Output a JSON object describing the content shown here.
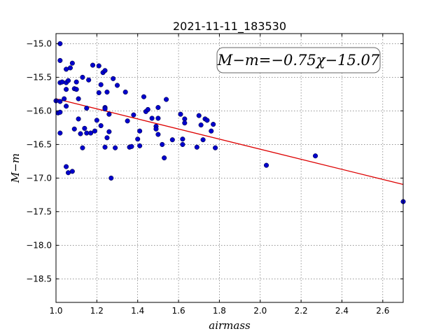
{
  "chart_data": {
    "type": "scatter",
    "title": "2021-11-11_183530",
    "xlabel": "airmass",
    "ylabel": "M−m",
    "fit_label": "M−m=−0.75χ−15.07",
    "xlim": [
      1.0,
      2.7
    ],
    "ylim": [
      -18.85,
      -14.85
    ],
    "y_inverted": false,
    "grid": true,
    "x_ticks": [
      "1.0",
      "1.2",
      "1.4",
      "1.6",
      "1.8",
      "2.0",
      "2.2",
      "2.4",
      "2.6"
    ],
    "y_ticks": [
      "−15.0",
      "−15.5",
      "−16.0",
      "−16.5",
      "−17.0",
      "−17.5",
      "−18.0",
      "−18.5"
    ],
    "fit": {
      "slope": -0.75,
      "intercept": -15.07,
      "x_range": [
        1.0,
        2.7
      ],
      "color": "#dd0000"
    },
    "series": [
      {
        "marker_color": "#0000cc",
        "points": [
          [
            1.0,
            -15.85
          ],
          [
            1.01,
            -16.03
          ],
          [
            1.02,
            -15.0
          ],
          [
            1.02,
            -15.25
          ],
          [
            1.02,
            -15.58
          ],
          [
            1.02,
            -15.86
          ],
          [
            1.02,
            -16.02
          ],
          [
            1.02,
            -16.33
          ],
          [
            1.03,
            -15.57
          ],
          [
            1.04,
            -15.82
          ],
          [
            1.05,
            -15.38
          ],
          [
            1.05,
            -15.58
          ],
          [
            1.05,
            -15.68
          ],
          [
            1.05,
            -15.93
          ],
          [
            1.05,
            -16.83
          ],
          [
            1.06,
            -16.92
          ],
          [
            1.06,
            -15.55
          ],
          [
            1.07,
            -15.36
          ],
          [
            1.08,
            -16.9
          ],
          [
            1.08,
            -15.29
          ],
          [
            1.09,
            -15.67
          ],
          [
            1.09,
            -16.27
          ],
          [
            1.1,
            -15.57
          ],
          [
            1.1,
            -15.68
          ],
          [
            1.11,
            -16.12
          ],
          [
            1.11,
            -15.82
          ],
          [
            1.12,
            -16.34
          ],
          [
            1.13,
            -16.55
          ],
          [
            1.13,
            -15.5
          ],
          [
            1.14,
            -16.26
          ],
          [
            1.15,
            -15.96
          ],
          [
            1.15,
            -16.33
          ],
          [
            1.16,
            -15.54
          ],
          [
            1.17,
            -16.33
          ],
          [
            1.18,
            -15.32
          ],
          [
            1.19,
            -16.3
          ],
          [
            1.2,
            -16.14
          ],
          [
            1.21,
            -15.33
          ],
          [
            1.21,
            -15.73
          ],
          [
            1.22,
            -16.22
          ],
          [
            1.22,
            -15.61
          ],
          [
            1.23,
            -15.43
          ],
          [
            1.24,
            -15.95
          ],
          [
            1.24,
            -15.4
          ],
          [
            1.24,
            -15.97
          ],
          [
            1.24,
            -16.54
          ],
          [
            1.25,
            -15.72
          ],
          [
            1.25,
            -16.4
          ],
          [
            1.26,
            -16.05
          ],
          [
            1.26,
            -16.31
          ],
          [
            1.27,
            -17.0
          ],
          [
            1.28,
            -15.52
          ],
          [
            1.29,
            -16.55
          ],
          [
            1.3,
            -15.62
          ],
          [
            1.34,
            -15.72
          ],
          [
            1.35,
            -16.15
          ],
          [
            1.36,
            -16.54
          ],
          [
            1.37,
            -16.53
          ],
          [
            1.38,
            -16.06
          ],
          [
            1.4,
            -16.42
          ],
          [
            1.41,
            -16.3
          ],
          [
            1.41,
            -16.52
          ],
          [
            1.43,
            -15.79
          ],
          [
            1.44,
            -16.01
          ],
          [
            1.45,
            -15.98
          ],
          [
            1.47,
            -16.11
          ],
          [
            1.49,
            -16.23
          ],
          [
            1.49,
            -16.27
          ],
          [
            1.5,
            -16.35
          ],
          [
            1.5,
            -16.11
          ],
          [
            1.5,
            -15.95
          ],
          [
            1.52,
            -16.5
          ],
          [
            1.53,
            -16.7
          ],
          [
            1.54,
            -15.83
          ],
          [
            1.57,
            -16.43
          ],
          [
            1.61,
            -16.05
          ],
          [
            1.62,
            -16.42
          ],
          [
            1.62,
            -16.5
          ],
          [
            1.63,
            -16.12
          ],
          [
            1.63,
            -16.18
          ],
          [
            1.69,
            -16.54
          ],
          [
            1.7,
            -16.07
          ],
          [
            1.71,
            -16.21
          ],
          [
            1.72,
            -16.43
          ],
          [
            1.73,
            -16.12
          ],
          [
            1.74,
            -16.14
          ],
          [
            1.76,
            -16.3
          ],
          [
            1.77,
            -16.2
          ],
          [
            1.78,
            -16.55
          ],
          [
            2.03,
            -16.81
          ],
          [
            2.27,
            -16.67
          ],
          [
            2.7,
            -17.35
          ]
        ]
      }
    ]
  }
}
